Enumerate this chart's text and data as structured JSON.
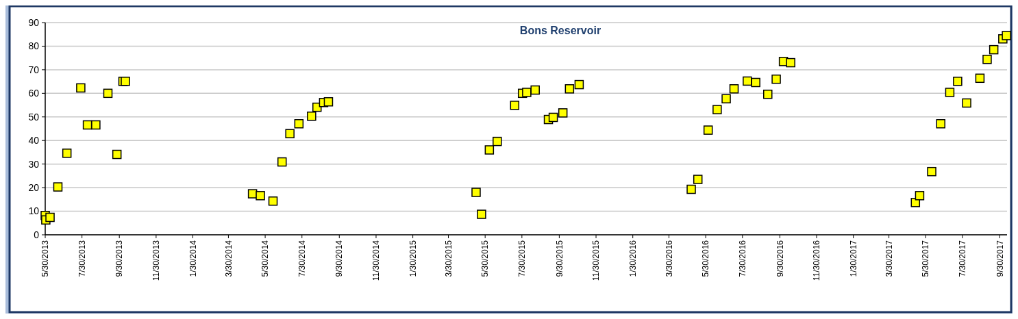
{
  "chart_data": {
    "type": "scatter",
    "title": "Bons Reservoir",
    "xlim": [
      "2013-05-30",
      "2017-10-12"
    ],
    "xticks": [
      {
        "value": "2013-05-30",
        "label": "5/30/2013"
      },
      {
        "value": "2013-07-30",
        "label": "7/30/2013"
      },
      {
        "value": "2013-09-30",
        "label": "9/30/2013"
      },
      {
        "value": "2013-11-30",
        "label": "11/30/2013"
      },
      {
        "value": "2014-01-30",
        "label": "1/30/2014"
      },
      {
        "value": "2014-03-30",
        "label": "3/30/2014"
      },
      {
        "value": "2014-05-30",
        "label": "5/30/2014"
      },
      {
        "value": "2014-07-30",
        "label": "7/30/2014"
      },
      {
        "value": "2014-09-30",
        "label": "9/30/2014"
      },
      {
        "value": "2014-11-30",
        "label": "11/30/2014"
      },
      {
        "value": "2015-01-30",
        "label": "1/30/2015"
      },
      {
        "value": "2015-03-30",
        "label": "3/30/2015"
      },
      {
        "value": "2015-05-30",
        "label": "5/30/2015"
      },
      {
        "value": "2015-07-30",
        "label": "7/30/2015"
      },
      {
        "value": "2015-09-30",
        "label": "9/30/2015"
      },
      {
        "value": "2015-11-30",
        "label": "11/30/2015"
      },
      {
        "value": "2016-01-30",
        "label": "1/30/2016"
      },
      {
        "value": "2016-03-30",
        "label": "3/30/2016"
      },
      {
        "value": "2016-05-30",
        "label": "5/30/2016"
      },
      {
        "value": "2016-07-30",
        "label": "7/30/2016"
      },
      {
        "value": "2016-09-30",
        "label": "9/30/2016"
      },
      {
        "value": "2016-11-30",
        "label": "11/30/2016"
      },
      {
        "value": "2017-01-30",
        "label": "1/30/2017"
      },
      {
        "value": "2017-03-30",
        "label": "3/30/2017"
      },
      {
        "value": "2017-05-30",
        "label": "5/30/2017"
      },
      {
        "value": "2017-07-30",
        "label": "7/30/2017"
      },
      {
        "value": "2017-09-30",
        "label": "9/30/2017"
      }
    ],
    "ylim": [
      0,
      90
    ],
    "yticks": [
      0,
      10,
      20,
      30,
      40,
      50,
      60,
      70,
      80,
      90
    ],
    "grid": "y",
    "marker": "square",
    "series": [
      {
        "color": "#ffff00",
        "x": [
          "2013-05-30",
          "2013-05-31",
          "2013-06-07",
          "2013-06-20",
          "2013-07-05",
          "2013-07-28",
          "2013-08-08",
          "2013-08-22",
          "2013-09-11",
          "2013-09-26",
          "2013-10-06",
          "2013-10-10",
          "2014-05-09",
          "2014-05-22",
          "2014-06-12",
          "2014-06-27",
          "2014-07-10",
          "2014-07-25",
          "2014-08-15",
          "2014-08-24",
          "2014-09-04",
          "2014-09-12",
          "2015-05-15",
          "2015-05-24",
          "2015-06-06",
          "2015-06-19",
          "2015-07-18",
          "2015-07-31",
          "2015-08-07",
          "2015-08-21",
          "2015-09-12",
          "2015-09-20",
          "2015-10-06",
          "2015-10-17",
          "2015-11-02",
          "2016-05-06",
          "2016-05-17",
          "2016-06-03",
          "2016-06-18",
          "2016-07-03",
          "2016-07-16",
          "2016-08-07",
          "2016-08-21",
          "2016-09-10",
          "2016-09-24",
          "2016-10-06",
          "2016-10-18",
          "2017-05-13",
          "2017-05-20",
          "2017-06-09",
          "2017-06-24",
          "2017-07-09",
          "2017-07-22",
          "2017-08-06",
          "2017-08-28",
          "2017-09-09",
          "2017-09-20",
          "2017-10-05",
          "2017-10-11"
        ],
        "values": [
          8.2,
          6.3,
          7.4,
          20.3,
          34.6,
          62.3,
          46.6,
          46.6,
          60,
          34.1,
          65.1,
          65.1,
          17.4,
          16.6,
          14.3,
          30.9,
          42.9,
          47.1,
          50.3,
          54.1,
          56.1,
          56.4,
          18,
          8.7,
          36,
          39.6,
          54.9,
          60,
          60.4,
          61.4,
          48.9,
          49.8,
          51.7,
          61.9,
          63.7,
          19.3,
          23.5,
          44.4,
          53.1,
          57.7,
          61.9,
          65.2,
          64.6,
          59.6,
          66,
          73.5,
          73,
          13.7,
          16.6,
          26.8,
          47.1,
          60.4,
          65.1,
          55.9,
          66.4,
          74.4,
          78.5,
          83.1,
          84.5
        ]
      }
    ]
  }
}
